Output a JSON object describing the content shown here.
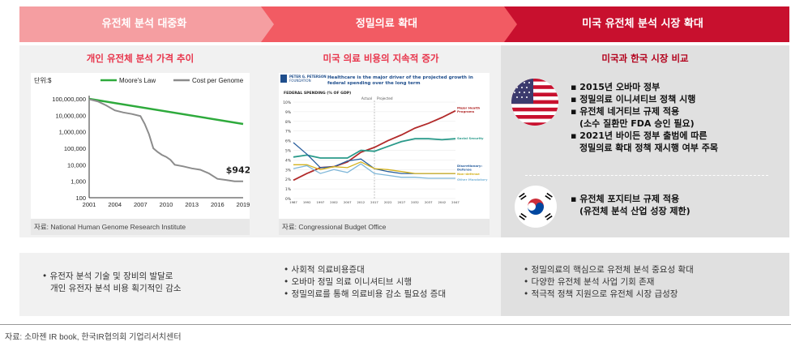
{
  "headers": [
    {
      "label": "유전체 분석 대중화",
      "color": "#f59ea1"
    },
    {
      "label": "정밀의료 확대",
      "color": "#f25b63"
    },
    {
      "label": "미국 유전체 분석 시장 확대",
      "color": "#c8102e"
    }
  ],
  "col1": {
    "subtitle": "개인 유전체 분석 가격 추이",
    "source": "자료: National Human Genome Research Institute",
    "bottom": [
      "유전자 분석 기술 및 장비의 발달로",
      "개인 유전자 분석 비용 획기적인 감소"
    ]
  },
  "col2": {
    "subtitle": "미국 의료 비용의 지속적 증가",
    "source": "자료: Congressional Budget Office",
    "bottom": [
      "사회적 의료비용증대",
      "오바마 정밀 의료 이니셔티브 시행",
      "정밀의료를 통해 의료비용 감소 필요성 증대"
    ]
  },
  "col3": {
    "subtitle": "미국과 한국 시장 비교",
    "us_items": [
      "2015년 오바마 정부",
      "정밀의료 이니셔티브 정책 시행",
      "유전체 네거티브 규제 적용",
      "(소수 질환만 FDA 승인 필요)",
      "2021년 바이든 정부 출범에 따른",
      "정밀의료 확대 정책 재시행 여부 주목"
    ],
    "kr_items": [
      "유전체 포지티브 규제 적용",
      "(유전체 분석 산업 성장 제한)"
    ],
    "bottom": [
      "정밀의료의 핵심으로 유전체 분석 중요성 확대",
      "다양한 유전체 분석 사업 기회 존재",
      "적극적 정책 지원으로 유전체 시장 급성장"
    ]
  },
  "footnote": "자료: 소마젠 IR book, 한국IR협의회 기업리서치센터",
  "chart_data": [
    {
      "type": "line",
      "title": "",
      "unit_label": "단위:$",
      "legend": [
        "Moore's Law",
        "Cost per Genome"
      ],
      "yscale": "log",
      "ylim": [
        100,
        100000000
      ],
      "yticks": [
        "100,000,000",
        "10,000,000",
        "1,000,000",
        "100,000",
        "10,000",
        "1,000",
        "100"
      ],
      "xticks": [
        "2001",
        "2004",
        "2007",
        "2010",
        "2013",
        "2016",
        "2019"
      ],
      "series": [
        {
          "name": "Moore's Law",
          "color": "#2eaa3c",
          "x": [
            2001,
            2019
          ],
          "y": [
            100000000,
            3000000
          ]
        },
        {
          "name": "Cost per Genome",
          "color": "#8c8c8c",
          "x": [
            2001,
            2002,
            2003,
            2004,
            2005,
            2006,
            2007,
            2007.5,
            2008,
            2008.5,
            2009,
            2009.5,
            2010,
            2010.5,
            2011,
            2012,
            2013,
            2014,
            2015,
            2016,
            2017,
            2018,
            2019
          ],
          "y": [
            95000000,
            70000000,
            40000000,
            20000000,
            15000000,
            12000000,
            9000000,
            3000000,
            700000,
            100000,
            60000,
            40000,
            30000,
            20000,
            10000,
            8000,
            6000,
            5000,
            3000,
            1400,
            1200,
            1000,
            1000
          ]
        }
      ],
      "annotation": "$942"
    },
    {
      "type": "line",
      "header": "PETER G. PETERSON FOUNDATION",
      "title": "Healthcare is the major driver of the projected growth in federal spending over the long term",
      "subtitle": "FEDERAL SPENDING (% OF GDP)",
      "phases": [
        "Actual",
        "Projected"
      ],
      "ylim": [
        0,
        10
      ],
      "yticks": [
        "10%",
        "9%",
        "8%",
        "7%",
        "6%",
        "5%",
        "4%",
        "3%",
        "2%",
        "1%",
        "0%"
      ],
      "xticks": [
        "1987",
        "1992",
        "1997",
        "2002",
        "2007",
        "2012",
        "2017",
        "2022",
        "2027",
        "2032",
        "2037",
        "2042",
        "2047"
      ],
      "series": [
        {
          "name": "Major Health Programs",
          "color": "#b22a2a",
          "x": [
            1987,
            1992,
            1997,
            2002,
            2007,
            2012,
            2017,
            2022,
            2027,
            2032,
            2037,
            2042,
            2047
          ],
          "y": [
            1.9,
            2.6,
            3.2,
            3.3,
            3.8,
            4.8,
            5.3,
            6.0,
            6.6,
            7.3,
            7.8,
            8.4,
            9.1
          ]
        },
        {
          "name": "Social Security",
          "color": "#2a9a8a",
          "x": [
            1987,
            1992,
            1997,
            2002,
            2007,
            2012,
            2017,
            2022,
            2027,
            2032,
            2037,
            2042,
            2047
          ],
          "y": [
            4.3,
            4.5,
            4.2,
            4.2,
            4.2,
            5.0,
            4.9,
            5.4,
            5.9,
            6.2,
            6.2,
            6.1,
            6.2
          ]
        },
        {
          "name": "Discretionary: Defense",
          "color": "#2a5f9e",
          "x": [
            1987,
            1992,
            1997,
            2002,
            2007,
            2012,
            2017,
            2022,
            2027,
            2032,
            2037,
            2042,
            2047
          ],
          "y": [
            5.8,
            4.6,
            3.2,
            3.3,
            3.9,
            4.1,
            3.1,
            2.8,
            2.6,
            2.6,
            2.6,
            2.6,
            2.6
          ]
        },
        {
          "name": "Non-defense",
          "color": "#d4b21e",
          "x": [
            1987,
            1992,
            1997,
            2002,
            2007,
            2012,
            2017,
            2022,
            2027,
            2032,
            2037,
            2042,
            2047
          ],
          "y": [
            3.5,
            3.5,
            3.0,
            3.3,
            3.2,
            3.8,
            3.1,
            3.0,
            2.8,
            2.6,
            2.6,
            2.6,
            2.6
          ]
        },
        {
          "name": "Other Mandatory",
          "color": "#7fb7d9",
          "x": [
            1987,
            1992,
            1997,
            2002,
            2007,
            2012,
            2017,
            2022,
            2027,
            2032,
            2037,
            2042,
            2047
          ],
          "y": [
            3.1,
            3.4,
            2.6,
            3.0,
            2.7,
            3.6,
            2.6,
            2.4,
            2.2,
            2.2,
            2.1,
            2.1,
            2.1
          ]
        }
      ]
    }
  ]
}
